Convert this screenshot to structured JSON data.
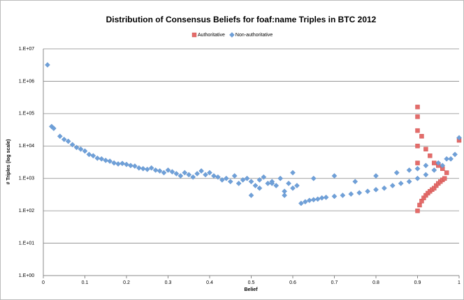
{
  "chart_data": {
    "type": "scatter",
    "title": "Distribution of Consensus Beliefs for foaf:name Triples in BTC 2012",
    "x_label": "Belief",
    "y_label": "# Triples (log scale)",
    "log_y": true,
    "grid": true,
    "legend": "top",
    "xlim": [
      0,
      1
    ],
    "xticks": [
      0,
      0.1,
      0.2,
      0.3,
      0.4,
      0.5,
      0.6,
      0.7,
      0.8,
      0.9,
      1
    ],
    "ylim": [
      1,
      10000000
    ],
    "yticks": [
      {
        "value": 1,
        "label": "1.E+00"
      },
      {
        "value": 10,
        "label": "1.E+01"
      },
      {
        "value": 100,
        "label": "1.E+02"
      },
      {
        "value": 1000,
        "label": "1.E+03"
      },
      {
        "value": 10000,
        "label": "1.E+04"
      },
      {
        "value": 100000,
        "label": "1.E+05"
      },
      {
        "value": 1000000,
        "label": "1.E+06"
      },
      {
        "value": 10000000,
        "label": "1.E+07"
      }
    ],
    "series": [
      {
        "name": "Authoritative",
        "color": "#e46c6a",
        "marker": "square",
        "x": [
          0.9,
          0.9,
          0.9,
          0.9,
          0.9,
          0.9,
          0.905,
          0.91,
          0.915,
          0.92,
          0.925,
          0.93,
          0.935,
          0.94,
          0.945,
          0.95,
          0.955,
          0.96,
          0.965,
          0.97,
          1.0,
          0.91,
          0.92,
          0.93,
          0.94,
          0.95,
          0.96
        ],
        "values": [
          160000,
          80000,
          30000,
          10000,
          3000,
          100,
          150,
          200,
          250,
          300,
          350,
          400,
          450,
          500,
          600,
          700,
          800,
          900,
          1000,
          1500,
          15000,
          20000,
          8000,
          5000,
          3000,
          2500,
          2000
        ]
      },
      {
        "name": "Non-authoritative",
        "color": "#6fa0d8",
        "marker": "diamond",
        "x": [
          0.01,
          0.02,
          0.025,
          0.04,
          0.05,
          0.06,
          0.07,
          0.08,
          0.09,
          0.1,
          0.11,
          0.12,
          0.13,
          0.14,
          0.15,
          0.16,
          0.17,
          0.18,
          0.19,
          0.2,
          0.21,
          0.22,
          0.23,
          0.24,
          0.25,
          0.26,
          0.27,
          0.28,
          0.29,
          0.3,
          0.31,
          0.32,
          0.33,
          0.34,
          0.35,
          0.36,
          0.37,
          0.38,
          0.39,
          0.4,
          0.41,
          0.42,
          0.43,
          0.44,
          0.45,
          0.46,
          0.47,
          0.48,
          0.49,
          0.5,
          0.51,
          0.52,
          0.53,
          0.54,
          0.55,
          0.56,
          0.57,
          0.58,
          0.59,
          0.6,
          0.61,
          0.62,
          0.63,
          0.64,
          0.65,
          0.66,
          0.67,
          0.68,
          0.7,
          0.72,
          0.74,
          0.76,
          0.78,
          0.8,
          0.82,
          0.84,
          0.86,
          0.88,
          0.9,
          0.92,
          0.94,
          0.96,
          0.98,
          0.99,
          1.0,
          0.5,
          0.52,
          0.55,
          0.58,
          0.6,
          0.65,
          0.7,
          0.75,
          0.8,
          0.85,
          0.88,
          0.9,
          0.92,
          0.95,
          0.97
        ],
        "values": [
          3200000,
          40000,
          35000,
          20000,
          16000,
          14000,
          11000,
          9000,
          8000,
          7000,
          5500,
          5000,
          4200,
          4000,
          3600,
          3400,
          3000,
          2800,
          2900,
          2700,
          2500,
          2400,
          2100,
          2000,
          1900,
          2100,
          1800,
          1700,
          1500,
          1800,
          1600,
          1400,
          1200,
          1500,
          1300,
          1100,
          1400,
          1700,
          1300,
          1500,
          1200,
          1100,
          900,
          1000,
          800,
          1200,
          700,
          900,
          1000,
          800,
          600,
          900,
          1100,
          700,
          800,
          600,
          1000,
          400,
          700,
          500,
          600,
          170,
          190,
          210,
          220,
          230,
          250,
          260,
          280,
          300,
          330,
          360,
          400,
          450,
          500,
          600,
          700,
          800,
          1000,
          1300,
          1800,
          2500,
          4000,
          5500,
          18000,
          300,
          500,
          700,
          300,
          1500,
          1000,
          1200,
          800,
          1200,
          1500,
          1800,
          2000,
          2500,
          3000,
          4000
        ]
      }
    ]
  }
}
